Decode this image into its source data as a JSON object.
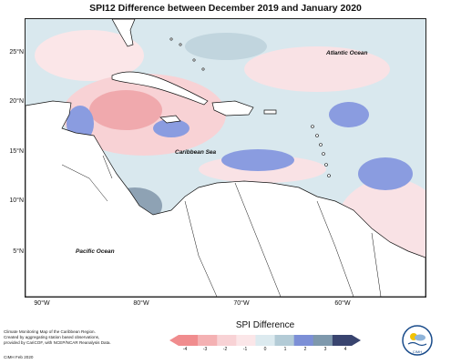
{
  "title": "SPI12 Difference between December 2019 and January 2020",
  "y_labels": [
    "25°N",
    "20°N",
    "15°N",
    "10°N",
    "5°N"
  ],
  "x_labels": [
    "90°W",
    "80°W",
    "70°W",
    "60°W"
  ],
  "oceans": {
    "atlantic": "Atlantic Ocean",
    "caribbean": "Caribbean Sea",
    "pacific": "Pacific Ocean"
  },
  "footer": {
    "note_line1": "Climate Monitoring Map of the Caribbean Region.",
    "note_line2": "Created by aggregating station based observations,",
    "note_line3": "provided by CariCOF, with NCEP/NCAR Reanalysis Data.",
    "credit": "CIMH Feb 2020"
  },
  "legend": {
    "title": "SPI Difference",
    "ticks": [
      "-4",
      "-3",
      "-2",
      "-1",
      "0",
      "1",
      "2",
      "3",
      "4"
    ],
    "colors": [
      "#f08c8e",
      "#f4b1b3",
      "#f8d2d5",
      "#fbe6e8",
      "#dceaef",
      "#b3cbd6",
      "#7c8fd6",
      "#7e98ac",
      "#39446f"
    ]
  },
  "logo": {
    "label": "CIMH",
    "icon": "cimh-logo-icon"
  },
  "colors": {
    "land_outline": "#111111",
    "water_base": "#d7e6ec"
  }
}
